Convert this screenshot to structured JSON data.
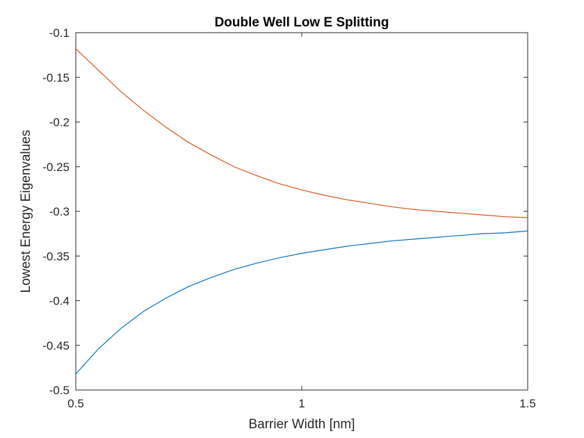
{
  "chart_data": {
    "type": "line",
    "title": "Double Well Low E Splitting",
    "xlabel": "Barrier Width [nm]",
    "ylabel": "Lowest Energy Eigenvalues",
    "xlim": [
      0.5,
      1.5
    ],
    "ylim": [
      -0.5,
      -0.1
    ],
    "grid": false,
    "x_ticks": [
      0.5,
      1,
      1.5
    ],
    "x_tick_labels": [
      "0.5",
      "1",
      "1.5"
    ],
    "y_ticks": [
      -0.5,
      -0.45,
      -0.4,
      -0.35,
      -0.3,
      -0.25,
      -0.2,
      -0.15,
      -0.1
    ],
    "y_tick_labels": [
      "-0.5",
      "-0.45",
      "-0.4",
      "-0.35",
      "-0.3",
      "-0.25",
      "-0.2",
      "-0.15",
      "-0.1"
    ],
    "x": [
      0.5,
      0.55,
      0.6,
      0.65,
      0.7,
      0.75,
      0.8,
      0.85,
      0.9,
      0.95,
      1.0,
      1.05,
      1.1,
      1.15,
      1.2,
      1.25,
      1.3,
      1.35,
      1.4,
      1.45,
      1.5
    ],
    "series": [
      {
        "color": "#0072BD",
        "values": [
          -0.482,
          -0.454,
          -0.431,
          -0.412,
          -0.397,
          -0.384,
          -0.374,
          -0.365,
          -0.358,
          -0.352,
          -0.347,
          -0.343,
          -0.339,
          -0.336,
          -0.333,
          -0.331,
          -0.329,
          -0.327,
          -0.325,
          -0.324,
          -0.322
        ]
      },
      {
        "color": "#D95319",
        "values": [
          -0.118,
          -0.142,
          -0.166,
          -0.187,
          -0.206,
          -0.223,
          -0.237,
          -0.25,
          -0.26,
          -0.269,
          -0.276,
          -0.282,
          -0.287,
          -0.291,
          -0.295,
          -0.298,
          -0.3,
          -0.302,
          -0.304,
          -0.306,
          -0.307
        ]
      }
    ]
  }
}
